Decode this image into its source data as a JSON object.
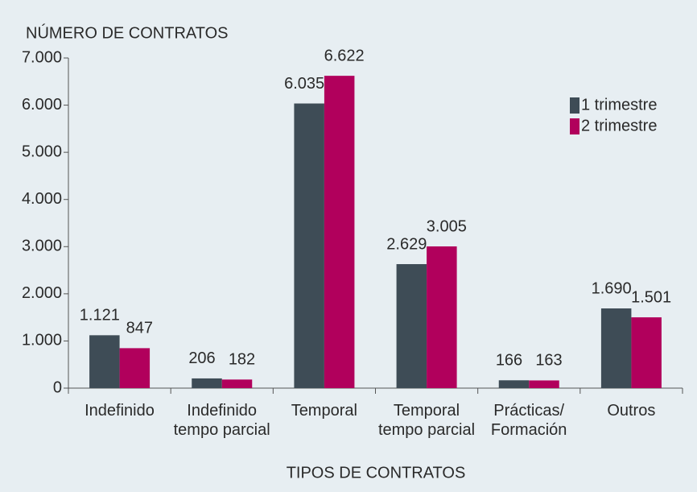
{
  "chart_data": {
    "type": "bar",
    "title": "NÚMERO DE CONTRATOS",
    "x_label": "TIPOS DE CONTRATOS",
    "categories": [
      "Indefinido",
      "Indefinido tempo parcial",
      "Temporal",
      "Temporal tempo parcial",
      "Prácticas/ Formación",
      "Outros"
    ],
    "series": [
      {
        "name": "1 trimestre",
        "color": "#3e4c56",
        "values": [
          1121,
          206,
          6035,
          2629,
          166,
          1690
        ],
        "value_labels": [
          "1.121",
          "206",
          "6.035",
          "2.629",
          "166",
          "1.690"
        ]
      },
      {
        "name": "2 trimestre",
        "color": "#b1005c",
        "values": [
          847,
          182,
          6622,
          3005,
          163,
          1501
        ],
        "value_labels": [
          "847",
          "182",
          "6.622",
          "3.005",
          "163",
          "1.501"
        ]
      }
    ],
    "ylim": [
      0,
      7000
    ],
    "yticks": [
      {
        "value": 0,
        "label": "0"
      },
      {
        "value": 1000,
        "label": "1.000"
      },
      {
        "value": 2000,
        "label": "2.000"
      },
      {
        "value": 3000,
        "label": "3.000"
      },
      {
        "value": 4000,
        "label": "4.000"
      },
      {
        "value": 5000,
        "label": "5.000"
      },
      {
        "value": 6000,
        "label": "6.000"
      },
      {
        "value": 7000,
        "label": "7.000"
      }
    ],
    "legend": "upper right"
  }
}
